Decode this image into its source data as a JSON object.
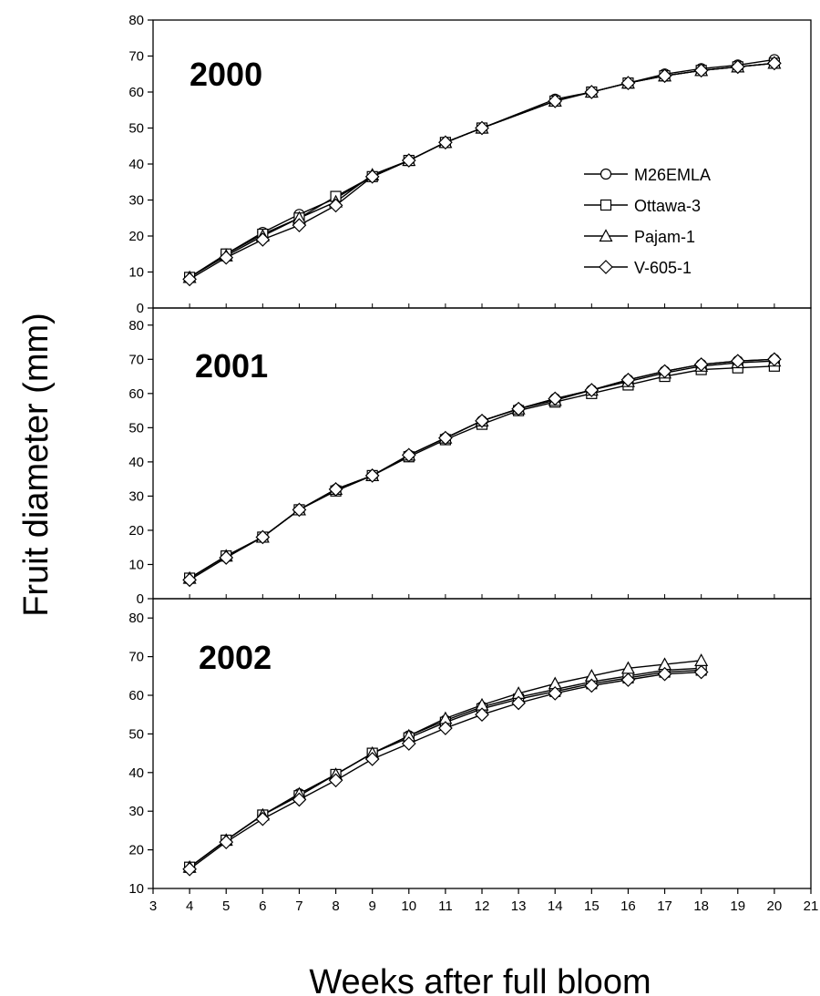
{
  "chart_data": {
    "type": "line",
    "xlabel": "Weeks after full bloom",
    "ylabel": "Fruit diameter (mm)",
    "xlim": [
      3,
      21
    ],
    "xticks": [
      3,
      4,
      5,
      6,
      7,
      8,
      9,
      10,
      11,
      12,
      13,
      14,
      15,
      16,
      17,
      18,
      19,
      20,
      21
    ],
    "legend": {
      "position": "right",
      "entries": [
        {
          "name": "M26EMLA",
          "marker": "circle"
        },
        {
          "name": "Ottawa-3",
          "marker": "square"
        },
        {
          "name": "Pajam-1",
          "marker": "triangle"
        },
        {
          "name": "V-605-1",
          "marker": "diamond"
        }
      ]
    },
    "panels": [
      {
        "label": "2000",
        "ylim": [
          0,
          80
        ],
        "yticks": [
          0,
          10,
          20,
          30,
          40,
          50,
          60,
          70,
          80
        ],
        "x": [
          4,
          5,
          6,
          7,
          8,
          9,
          10,
          11,
          12,
          14,
          15,
          16,
          17,
          18,
          19,
          20
        ],
        "series": [
          {
            "name": "M26EMLA",
            "values": [
              8.5,
              15,
              21,
              26,
              30.5,
              36.5,
              41,
              46,
              50,
              58,
              60,
              62.5,
              65,
              66.5,
              67.5,
              69
            ]
          },
          {
            "name": "Ottawa-3",
            "values": [
              8.5,
              15,
              20.5,
              25,
              31,
              36.5,
              41,
              46,
              50,
              57.5,
              60,
              62.5,
              64.5,
              66,
              67,
              68
            ]
          },
          {
            "name": "Pajam-1",
            "values": [
              8.5,
              14.5,
              20,
              25,
              29.5,
              37,
              41,
              46,
              50,
              57.5,
              60,
              62.5,
              64.5,
              66,
              67,
              68
            ]
          },
          {
            "name": "V-605-1",
            "values": [
              8,
              14,
              19,
              23,
              28.5,
              36.5,
              41,
              46,
              50,
              57.5,
              60,
              62.5,
              64.5,
              66,
              67,
              68
            ]
          }
        ]
      },
      {
        "label": "2001",
        "ylim": [
          0,
          85
        ],
        "yticks": [
          0,
          10,
          20,
          30,
          40,
          50,
          60,
          70,
          80
        ],
        "x": [
          4,
          5,
          6,
          7,
          8,
          9,
          10,
          11,
          12,
          13,
          14,
          15,
          16,
          17,
          18,
          19,
          20
        ],
        "series": [
          {
            "name": "M26EMLA",
            "values": [
              6,
              12.5,
              18,
              26,
              32,
              36,
              42,
              47,
              52,
              55.5,
              58.5,
              61,
              64,
              66.5,
              68.5,
              69.5,
              70
            ]
          },
          {
            "name": "Ottawa-3",
            "values": [
              6,
              12.5,
              18,
              26,
              31.5,
              36,
              41.5,
              46.5,
              51,
              55,
              57.5,
              60,
              62.5,
              65,
              67,
              67.5,
              68
            ]
          },
          {
            "name": "Pajam-1",
            "values": [
              6,
              12.5,
              18,
              26,
              32,
              36,
              42,
              47,
              52,
              55.5,
              58,
              61,
              63.5,
              66,
              68,
              69,
              69.5
            ]
          },
          {
            "name": "V-605-1",
            "values": [
              5.5,
              12,
              18,
              26,
              32,
              36,
              42,
              47,
              52,
              55.5,
              58.5,
              61,
              64,
              66.5,
              68.5,
              69.5,
              70
            ]
          }
        ]
      },
      {
        "label": "2002",
        "ylim": [
          10,
          85
        ],
        "yticks": [
          10,
          20,
          30,
          40,
          50,
          60,
          70,
          80
        ],
        "x": [
          4,
          5,
          6,
          7,
          8,
          9,
          10,
          11,
          12,
          13,
          14,
          15,
          16,
          17,
          18
        ],
        "series": [
          {
            "name": "M26EMLA",
            "values": [
              15.5,
              22.5,
              29,
              34.5,
              39.5,
              45,
              49.5,
              53.5,
              57,
              59.5,
              61.5,
              63.5,
              65,
              66.5,
              67
            ]
          },
          {
            "name": "Ottawa-3",
            "values": [
              15.5,
              22.5,
              29,
              34,
              39.5,
              45,
              49,
              53,
              56.5,
              59,
              61,
              63,
              64.5,
              66,
              66.5
            ]
          },
          {
            "name": "Pajam-1",
            "values": [
              15.5,
              22.5,
              29,
              34.5,
              39.5,
              45,
              49.5,
              54,
              57.5,
              60.5,
              63,
              65,
              67,
              68,
              69
            ]
          },
          {
            "name": "V-605-1",
            "values": [
              15,
              22,
              28,
              33,
              38,
              43.5,
              47.5,
              51.5,
              55,
              58,
              60.5,
              62.5,
              64,
              65.5,
              66
            ]
          }
        ]
      }
    ]
  }
}
